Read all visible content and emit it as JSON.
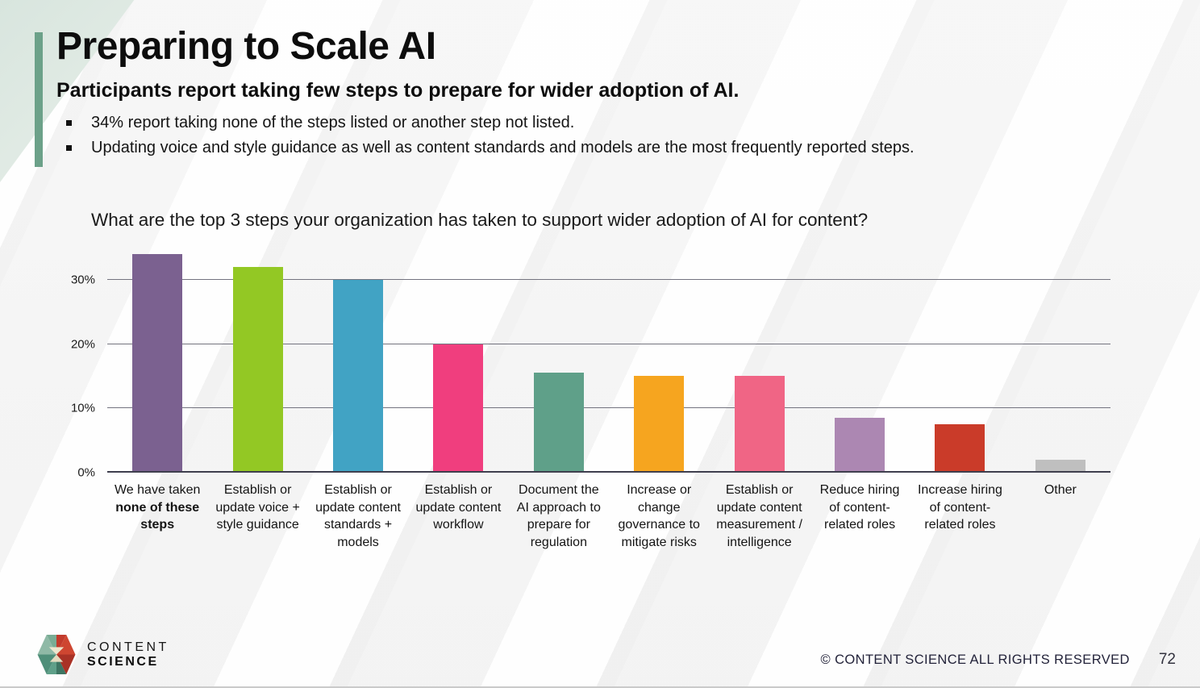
{
  "slide": {
    "title": "Preparing to Scale AI",
    "subtitle": "Participants report taking few steps to prepare for wider adoption of AI.",
    "bullets": [
      "34% report taking none of the steps listed or another step not listed.",
      "Updating voice and style guidance as well as content standards and models are the most frequently reported steps."
    ]
  },
  "chart_data": {
    "type": "bar",
    "title": "What are the top 3 steps your organization has taken to support wider adoption of AI for content?",
    "categories": [
      "We have taken none of these steps",
      "Establish or update voice + style guidance",
      "Establish or update content standards + models",
      "Establish or update content workflow",
      "Document the AI approach to prepare for regulation",
      "Increase or change governance to mitigate risks",
      "Establish or update content measurement / intelligence",
      "Reduce hiring of content-related roles",
      "Increase hiring of content-related roles",
      "Other"
    ],
    "values": [
      34,
      32,
      30,
      20,
      15.5,
      15,
      15,
      8.5,
      7.5,
      2
    ],
    "bar_colors": [
      "#7b6190",
      "#93c824",
      "#41a3c4",
      "#f03e7e",
      "#5fa089",
      "#f6a51f",
      "#f06585",
      "#ac87b2",
      "#ca3b29",
      "#bfbfbf"
    ],
    "bold_category_segments": {
      "0": "none of these steps"
    },
    "xlabel": "",
    "ylabel": "",
    "ylim": [
      0,
      35
    ],
    "yticks": [
      {
        "label": "0%",
        "value": 0
      },
      {
        "label": "10%",
        "value": 10
      },
      {
        "label": "20%",
        "value": 20
      },
      {
        "label": "30%",
        "value": 30
      }
    ],
    "grid": true,
    "legend": false
  },
  "footer": {
    "logo_line1": "CONTENT",
    "logo_line2": "SCIENCE",
    "copyright": "© CONTENT SCIENCE ALL RIGHTS RESERVED",
    "page_number": "72"
  },
  "colors": {
    "accent_bar": "#6ca189",
    "corner_wedge": "#d8e5de",
    "gridline": "#73737f",
    "axis_baseline": "#3f3f4e",
    "logo_red": "#ce4631",
    "logo_teal": "#5fa089",
    "logo_cream": "#ece6cd"
  },
  "icons": {
    "bullet_marker": "square-bullet-icon",
    "logo": "content-science-hexagon-logo-icon",
    "copyright_symbol": "copyright-icon"
  }
}
